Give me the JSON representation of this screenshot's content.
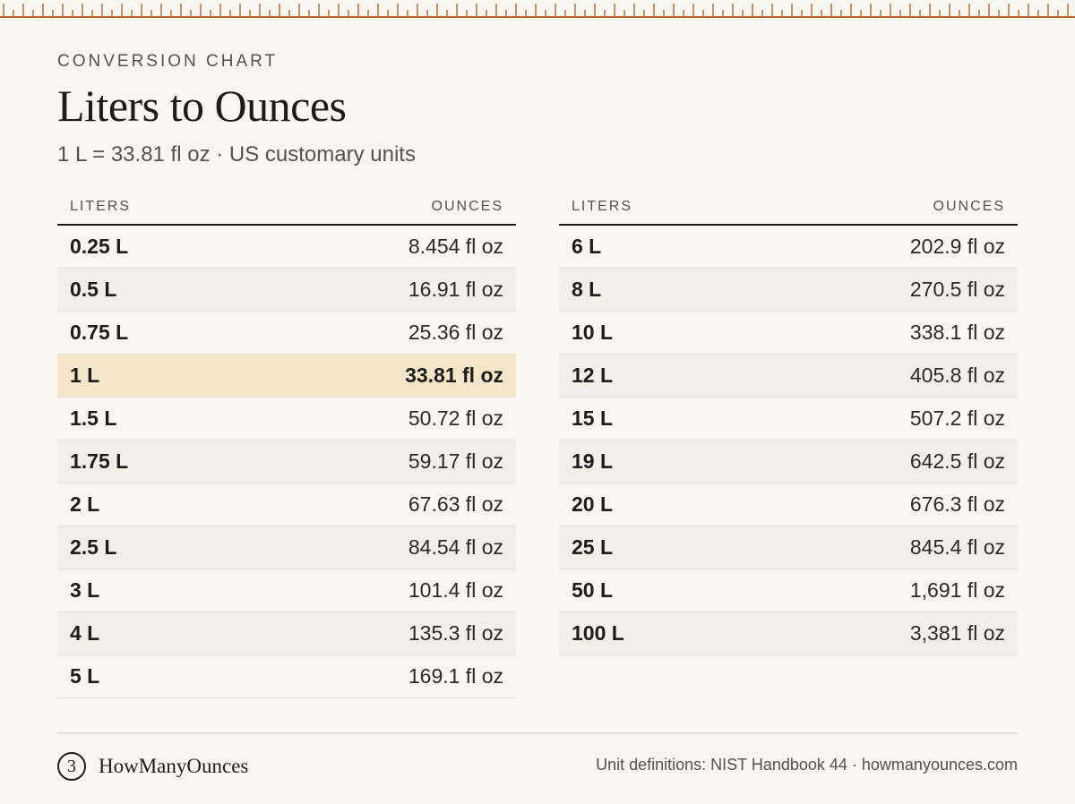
{
  "header": {
    "eyebrow": "CONVERSION CHART",
    "title": "Liters to Ounces",
    "subtitle": "1 L = 33.81 fl oz · US customary units"
  },
  "table_columns": {
    "liters": "LITERS",
    "ounces": "OUNCES"
  },
  "tables": [
    {
      "rows": [
        {
          "liters": "0.25 L",
          "ounces": "8.454 fl oz"
        },
        {
          "liters": "0.5 L",
          "ounces": "16.91 fl oz"
        },
        {
          "liters": "0.75 L",
          "ounces": "25.36 fl oz"
        },
        {
          "liters": "1 L",
          "ounces": "33.81 fl oz",
          "highlight": true
        },
        {
          "liters": "1.5 L",
          "ounces": "50.72 fl oz"
        },
        {
          "liters": "1.75 L",
          "ounces": "59.17 fl oz"
        },
        {
          "liters": "2 L",
          "ounces": "67.63 fl oz"
        },
        {
          "liters": "2.5 L",
          "ounces": "84.54 fl oz"
        },
        {
          "liters": "3 L",
          "ounces": "101.4 fl oz"
        },
        {
          "liters": "4 L",
          "ounces": "135.3 fl oz"
        },
        {
          "liters": "5 L",
          "ounces": "169.1 fl oz"
        }
      ]
    },
    {
      "rows": [
        {
          "liters": "6 L",
          "ounces": "202.9 fl oz"
        },
        {
          "liters": "8 L",
          "ounces": "270.5 fl oz"
        },
        {
          "liters": "10 L",
          "ounces": "338.1 fl oz"
        },
        {
          "liters": "12 L",
          "ounces": "405.8 fl oz"
        },
        {
          "liters": "15 L",
          "ounces": "507.2 fl oz"
        },
        {
          "liters": "19 L",
          "ounces": "642.5 fl oz"
        },
        {
          "liters": "20 L",
          "ounces": "676.3 fl oz"
        },
        {
          "liters": "25 L",
          "ounces": "845.4 fl oz"
        },
        {
          "liters": "50 L",
          "ounces": "1,691 fl oz"
        },
        {
          "liters": "100 L",
          "ounces": "3,381 fl oz"
        }
      ]
    }
  ],
  "footer": {
    "logo_mark": "3",
    "logo_mark_icon": "ounce-symbol-icon",
    "brand": "HowManyOunces",
    "source": "Unit definitions: NIST Handbook 44 · howmanyounces.com"
  },
  "colors": {
    "background": "#f8f6f1",
    "ruler": "#b5652a",
    "highlight": "#f4e6c8",
    "stripe": "#f2efe8",
    "text": "#1d1c1a",
    "muted": "#55524c"
  }
}
